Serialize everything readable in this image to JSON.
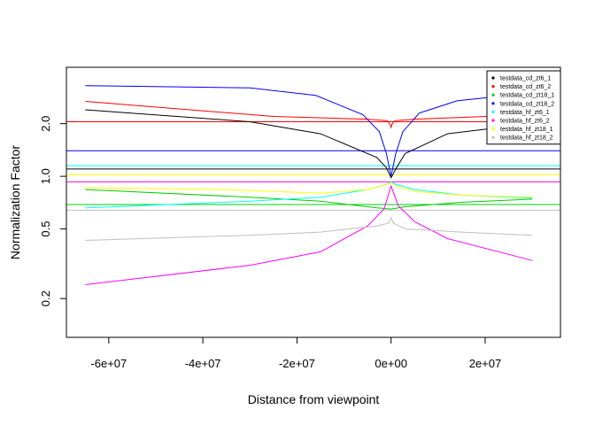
{
  "chart_data": {
    "type": "line",
    "title": "",
    "xlabel": "Distance from viewpoint",
    "ylabel": "Normalization Factor",
    "xlim": [
      -69000000,
      36000000
    ],
    "ylim": [
      0.12,
      4.2
    ],
    "yscale": "log",
    "x_ticks": [
      -60000000,
      -40000000,
      -20000000,
      0,
      20000000
    ],
    "x_tick_labels": [
      "-6e+07",
      "-4e+07",
      "-2e+07",
      "0e+00",
      "2e+07"
    ],
    "y_ticks": [
      0.2,
      0.5,
      1.0,
      2.0
    ],
    "y_tick_labels": [
      "0.2",
      "0.5",
      "1.0",
      "2.0"
    ],
    "grid": false,
    "legend_position": "top-right",
    "series": [
      {
        "name": "testdata_cd_zt6_1",
        "color": "#000000",
        "points": [
          [
            -65000000,
            2.4
          ],
          [
            -30000000,
            2.05
          ],
          [
            -15000000,
            1.75
          ],
          [
            -3000000,
            1.28
          ],
          [
            -1000000,
            1.12
          ],
          [
            0,
            0.98
          ],
          [
            1000000,
            1.1
          ],
          [
            3000000,
            1.35
          ],
          [
            12000000,
            1.75
          ],
          [
            30000000,
            2.0
          ]
        ],
        "hline": 1.1
      },
      {
        "name": "testdata_cd_zt6_2",
        "color": "#ff0000",
        "points": [
          [
            -65000000,
            2.68
          ],
          [
            -25000000,
            2.2
          ],
          [
            -5000000,
            2.12
          ],
          [
            -800000,
            2.08
          ],
          [
            -200000,
            1.98
          ],
          [
            0,
            1.9
          ],
          [
            200000,
            1.98
          ],
          [
            800000,
            2.08
          ],
          [
            5000000,
            2.12
          ],
          [
            30000000,
            2.25
          ]
        ],
        "hline": 2.05
      },
      {
        "name": "testdata_cd_zt18_1",
        "color": "#00cd00",
        "points": [
          [
            -65000000,
            0.84
          ],
          [
            -30000000,
            0.76
          ],
          [
            -15000000,
            0.72
          ],
          [
            -3000000,
            0.66
          ],
          [
            0,
            0.65
          ],
          [
            3000000,
            0.67
          ],
          [
            15000000,
            0.71
          ],
          [
            30000000,
            0.74
          ]
        ],
        "hline": 0.69
      },
      {
        "name": "testdata_cd_zt18_2",
        "color": "#0000ff",
        "points": [
          [
            -65000000,
            3.3
          ],
          [
            -30000000,
            3.2
          ],
          [
            -16000000,
            2.9
          ],
          [
            -6000000,
            2.25
          ],
          [
            -2500000,
            1.8
          ],
          [
            -1000000,
            1.35
          ],
          [
            0,
            1.0
          ],
          [
            1000000,
            1.35
          ],
          [
            2500000,
            1.8
          ],
          [
            6000000,
            2.3
          ],
          [
            14000000,
            2.7
          ],
          [
            30000000,
            3.0
          ]
        ],
        "hline": 1.4
      },
      {
        "name": "testdata_hf_zt6_1",
        "color": "#00ffff",
        "points": [
          [
            -65000000,
            0.66
          ],
          [
            -30000000,
            0.72
          ],
          [
            -15000000,
            0.76
          ],
          [
            -5000000,
            0.84
          ],
          [
            -1000000,
            0.9
          ],
          [
            0,
            0.93
          ],
          [
            1000000,
            0.9
          ],
          [
            5000000,
            0.84
          ],
          [
            15000000,
            0.78
          ],
          [
            30000000,
            0.75
          ]
        ],
        "hline": 1.15
      },
      {
        "name": "testdata_hf_zt6_2",
        "color": "#ff00ff",
        "points": [
          [
            -65000000,
            0.24
          ],
          [
            -30000000,
            0.31
          ],
          [
            -15000000,
            0.37
          ],
          [
            -5000000,
            0.52
          ],
          [
            -1500000,
            0.65
          ],
          [
            0,
            0.88
          ],
          [
            1500000,
            0.68
          ],
          [
            5000000,
            0.55
          ],
          [
            12000000,
            0.44
          ],
          [
            30000000,
            0.33
          ]
        ],
        "hline": 0.93
      },
      {
        "name": "testdata_hf_zt18_1",
        "color": "#ffff00",
        "points": [
          [
            -65000000,
            0.86
          ],
          [
            -35000000,
            0.84
          ],
          [
            -15000000,
            0.8
          ],
          [
            -5000000,
            0.84
          ],
          [
            -1000000,
            0.9
          ],
          [
            0,
            0.92
          ],
          [
            1000000,
            0.88
          ],
          [
            5000000,
            0.82
          ],
          [
            15000000,
            0.78
          ],
          [
            30000000,
            0.76
          ]
        ],
        "hline": 1.02
      },
      {
        "name": "testdata_hf_zt18_2",
        "color": "#bebebe",
        "points": [
          [
            -65000000,
            0.43
          ],
          [
            -30000000,
            0.46
          ],
          [
            -15000000,
            0.48
          ],
          [
            -3000000,
            0.52
          ],
          [
            -500000,
            0.54
          ],
          [
            0,
            0.58
          ],
          [
            500000,
            0.54
          ],
          [
            3000000,
            0.5
          ],
          [
            15000000,
            0.48
          ],
          [
            30000000,
            0.46
          ]
        ],
        "hline": 0.64
      }
    ]
  }
}
